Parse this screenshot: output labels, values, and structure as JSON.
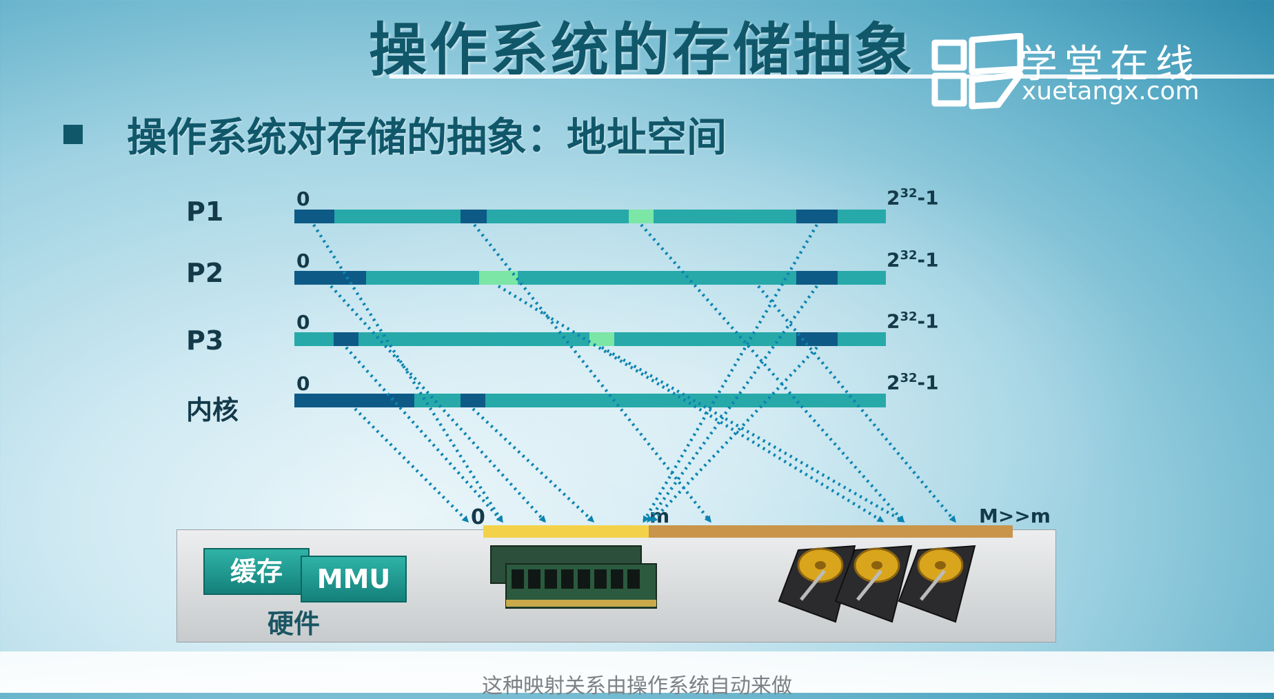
{
  "slide": {
    "title": "操作系统的存储抽象",
    "subtitle": "操作系统对存储的抽象：地址空间",
    "logo_cn": "学堂在线",
    "logo_en": "xuetangx.com"
  },
  "address_spaces": [
    {
      "label": "P1",
      "start": "0",
      "end_base": "2",
      "end_exp": "32",
      "end_suffix": "-1"
    },
    {
      "label": "P2",
      "start": "0",
      "end_base": "2",
      "end_exp": "32",
      "end_suffix": "-1"
    },
    {
      "label": "P3",
      "start": "0",
      "end_base": "2",
      "end_exp": "32",
      "end_suffix": "-1"
    },
    {
      "label": "内核",
      "start": "0",
      "end_base": "2",
      "end_exp": "32",
      "end_suffix": "-1"
    }
  ],
  "physical": {
    "start": "0",
    "m_label": "m",
    "M_label": "M>>m"
  },
  "hardware": {
    "cache": "缓存",
    "mmu": "MMU",
    "label": "硬件"
  },
  "caption": "这种映射关系由操作系统自动来做",
  "colors": {
    "bar": "#27a9a9",
    "segment_dark": "#0e5a86",
    "segment_light": "#7be6a6",
    "memory_bar": "#f3d24a",
    "disk_bar": "#c8954a",
    "arrow": "#0b84b0",
    "title": "#10576a"
  }
}
